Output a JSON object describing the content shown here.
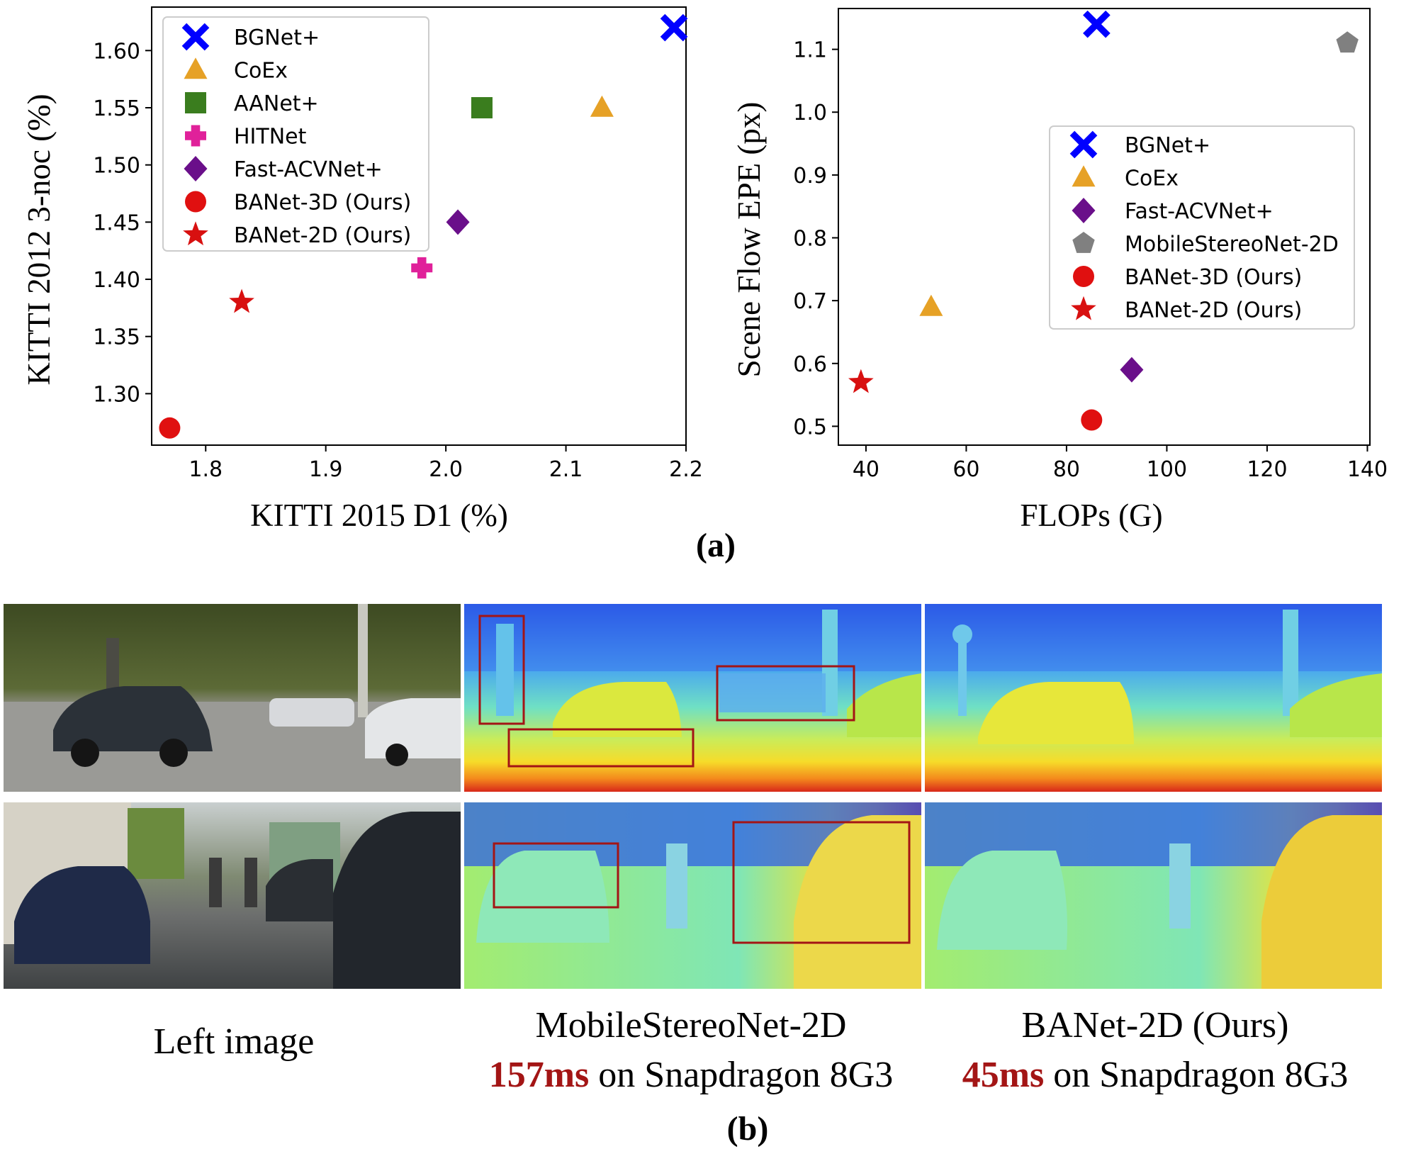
{
  "panel_a_label": "(a)",
  "panel_b_label": "(b)",
  "chart_data": [
    {
      "type": "scatter",
      "title": "",
      "xlabel": "KITTI 2015 D1 (%)",
      "ylabel": "KITTI 2012 3-noc (%)",
      "xlim": [
        1.755,
        2.2
      ],
      "ylim": [
        1.255,
        1.638
      ],
      "xticks": [
        1.8,
        1.9,
        2.0,
        2.1,
        2.2
      ],
      "xtick_labels": [
        "1.8",
        "1.9",
        "2.0",
        "2.1",
        "2.2"
      ],
      "yticks": [
        1.3,
        1.35,
        1.4,
        1.45,
        1.5,
        1.55,
        1.6
      ],
      "ytick_labels": [
        "1.30",
        "1.35",
        "1.40",
        "1.45",
        "1.50",
        "1.55",
        "1.60"
      ],
      "grid": false,
      "legend_position": "upper-left",
      "series": [
        {
          "name": "BGNet+",
          "marker": "x-cross",
          "color": "#0000ff",
          "x": 2.19,
          "y": 1.62
        },
        {
          "name": "CoEx",
          "marker": "triangle",
          "color": "#e6a126",
          "x": 2.13,
          "y": 1.55
        },
        {
          "name": "AANet+",
          "marker": "square",
          "color": "#3a7d1e",
          "x": 2.03,
          "y": 1.55
        },
        {
          "name": "HITNet",
          "marker": "plus",
          "color": "#e0219a",
          "x": 1.98,
          "y": 1.41
        },
        {
          "name": "Fast-ACVNet+",
          "marker": "diamond",
          "color": "#6a0f8a",
          "x": 2.01,
          "y": 1.45
        },
        {
          "name": "BANet-3D (Ours)",
          "marker": "circle",
          "color": "#e01010",
          "x": 1.77,
          "y": 1.27
        },
        {
          "name": "BANet-2D (Ours)",
          "marker": "star",
          "color": "#d81010",
          "x": 1.83,
          "y": 1.38
        }
      ]
    },
    {
      "type": "scatter",
      "title": "",
      "xlabel": "FLOPs (G)",
      "ylabel": "Scene Flow EPE (px)",
      "xlim": [
        34.5,
        140.5
      ],
      "ylim": [
        0.47,
        1.165
      ],
      "xticks": [
        40,
        60,
        80,
        100,
        120,
        140
      ],
      "xtick_labels": [
        "40",
        "60",
        "80",
        "100",
        "120",
        "140"
      ],
      "yticks": [
        0.5,
        0.6,
        0.7,
        0.8,
        0.9,
        1.0,
        1.1
      ],
      "ytick_labels": [
        "0.5",
        "0.6",
        "0.7",
        "0.8",
        "0.9",
        "1.0",
        "1.1"
      ],
      "grid": false,
      "legend_position": "center-right",
      "series": [
        {
          "name": "BGNet+",
          "marker": "x-cross",
          "color": "#0000ff",
          "x": 86,
          "y": 1.14
        },
        {
          "name": "CoEx",
          "marker": "triangle",
          "color": "#e6a126",
          "x": 53,
          "y": 0.69
        },
        {
          "name": "Fast-ACVNet+",
          "marker": "diamond",
          "color": "#6a0f8a",
          "x": 93,
          "y": 0.59
        },
        {
          "name": "MobileStereoNet-2D",
          "marker": "pentagon",
          "color": "#808080",
          "x": 136,
          "y": 1.11
        },
        {
          "name": "BANet-3D (Ours)",
          "marker": "circle",
          "color": "#e01010",
          "x": 85,
          "y": 0.51
        },
        {
          "name": "BANet-2D (Ours)",
          "marker": "star",
          "color": "#d81010",
          "x": 39,
          "y": 0.57
        }
      ]
    }
  ],
  "captions": {
    "left": "Left image",
    "mobile_title": "MobileStereoNet-2D",
    "mobile_time": "157ms",
    "mobile_rest": " on Snapdragon 8G3",
    "banet_title": "BANet-2D (Ours)",
    "banet_time": "45ms",
    "banet_rest": " on Snapdragon 8G3"
  }
}
